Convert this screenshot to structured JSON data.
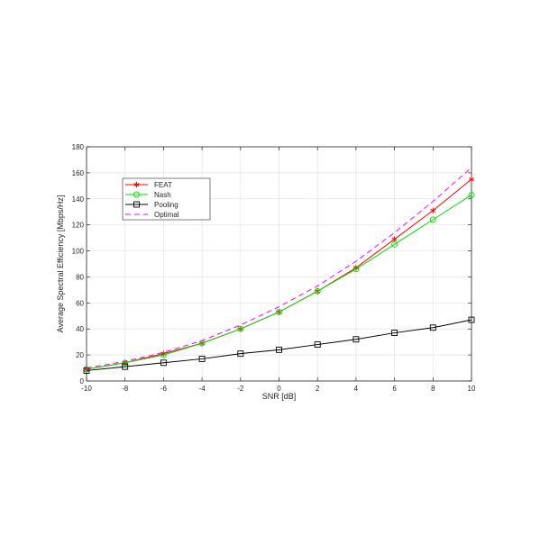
{
  "chart_data": {
    "type": "line",
    "xlabel": "SNR [dB]",
    "ylabel": "Average Spectral Efficiency [Mbps/Hz]",
    "xlim": [
      -10,
      10
    ],
    "ylim": [
      0,
      180
    ],
    "x_ticks": [
      "-10",
      "-8",
      "-6",
      "-4",
      "-2",
      "0",
      "2",
      "4",
      "6",
      "8",
      "10"
    ],
    "y_ticks": [
      "0",
      "20",
      "40",
      "60",
      "80",
      "100",
      "120",
      "140",
      "160",
      "180"
    ],
    "grid": true,
    "legend_position": "upper-left",
    "x": [
      -10,
      -8,
      -6,
      -4,
      -2,
      0,
      2,
      4,
      6,
      8,
      10
    ],
    "series": [
      {
        "name": "FEAT",
        "color": "#ff0000",
        "marker": "asterisk",
        "dash": "solid",
        "values": [
          9,
          14,
          21,
          29,
          40,
          53,
          69,
          87,
          109,
          131,
          155
        ]
      },
      {
        "name": "Nash",
        "color": "#00dd00",
        "marker": "circle",
        "dash": "solid",
        "values": [
          9,
          14,
          20,
          29,
          40,
          53,
          69,
          86,
          105,
          124,
          143
        ]
      },
      {
        "name": "Pooling",
        "color": "#000000",
        "marker": "square",
        "dash": "solid",
        "values": [
          8,
          11,
          14,
          17,
          21,
          24,
          28,
          32,
          37,
          41,
          47
        ]
      },
      {
        "name": "Optimal",
        "color": "#ff00ff",
        "marker": "none",
        "dash": "dashed",
        "values": [
          10,
          15,
          22,
          31,
          43,
          57,
          73,
          92,
          114,
          138,
          164
        ]
      }
    ]
  }
}
